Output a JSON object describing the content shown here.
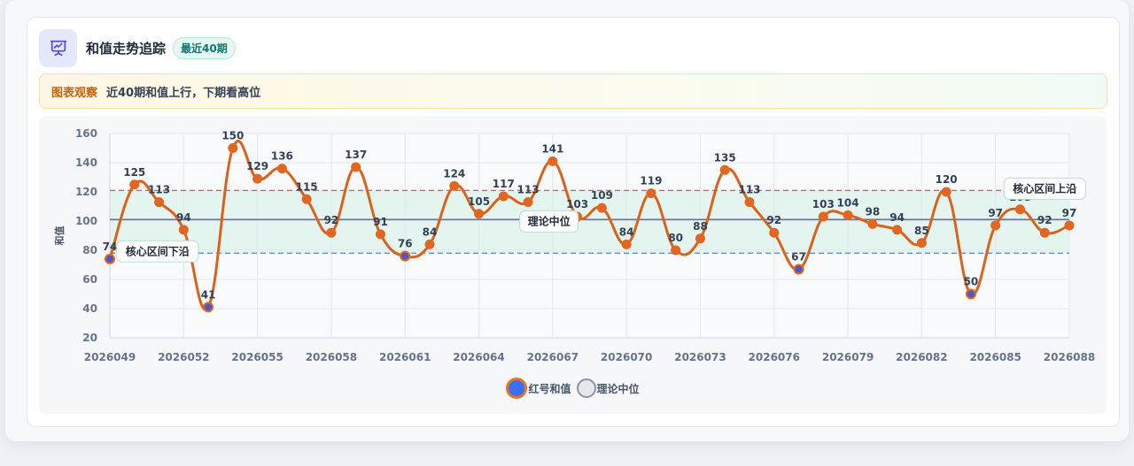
{
  "header": {
    "title": "和值走势追踪",
    "badge": "最近40期",
    "icon": "presentation-chart-icon"
  },
  "notice": {
    "tag": "图表观察",
    "text": "近40期和值上行，下期看高位"
  },
  "legend": {
    "sum_label": "红号和值",
    "median_label": "理论中位"
  },
  "chart_data": {
    "type": "line",
    "ylabel": "和值",
    "xlabel": "",
    "ylim": [
      20,
      160
    ],
    "yticks": [
      20,
      40,
      60,
      80,
      100,
      120,
      140,
      160
    ],
    "x": [
      "2026049",
      "2026050",
      "2026051",
      "2026052",
      "2026053",
      "2026054",
      "2026055",
      "2026056",
      "2026057",
      "2026058",
      "2026059",
      "2026060",
      "2026061",
      "2026062",
      "2026063",
      "2026064",
      "2026065",
      "2026066",
      "2026067",
      "2026068",
      "2026069",
      "2026070",
      "2026071",
      "2026072",
      "2026073",
      "2026074",
      "2026075",
      "2026076",
      "2026077",
      "2026078",
      "2026079",
      "2026080",
      "2026081",
      "2026082",
      "2026083",
      "2026084",
      "2026085",
      "2026086",
      "2026087",
      "2026088"
    ],
    "xtick_labels": [
      "2026049",
      "2026052",
      "2026055",
      "2026058",
      "2026061",
      "2026064",
      "2026067",
      "2026070",
      "2026073",
      "2026076",
      "2026079",
      "2026082",
      "2026085",
      "2026088"
    ],
    "series": [
      {
        "name": "红号和值",
        "values": [
          74,
          125,
          113,
          94,
          41,
          150,
          129,
          136,
          115,
          92,
          137,
          91,
          76,
          84,
          124,
          105,
          117,
          113,
          141,
          103,
          109,
          84,
          119,
          80,
          88,
          135,
          113,
          92,
          67,
          103,
          104,
          98,
          94,
          85,
          120,
          50,
          97,
          108,
          92,
          97
        ]
      }
    ],
    "reference_lines": [
      {
        "name": "理论中位",
        "value": 101,
        "style": "solid"
      },
      {
        "name": "核心区间上沿",
        "value": 121,
        "style": "dashed",
        "color": "#e05a4f"
      },
      {
        "name": "核心区间下沿",
        "value": 78,
        "style": "dashed",
        "color": "#5b8fd6"
      }
    ],
    "band": {
      "from": 78,
      "to": 121,
      "color": "#dff3ea"
    },
    "annotations": [
      {
        "text": "核心区间下沿",
        "anchor_period": "2026050"
      },
      {
        "text": "理论中位",
        "anchor_period": "2026068"
      },
      {
        "text": "核心区间上沿",
        "anchor_period": "2026087"
      }
    ],
    "colors": {
      "line": "#d9621c",
      "point_fill": "#e06622",
      "low_point_fill": "#4a58c8",
      "grid": "#e2e7ee",
      "median": "#64748b"
    },
    "grid": true,
    "legend_position": "bottom"
  }
}
